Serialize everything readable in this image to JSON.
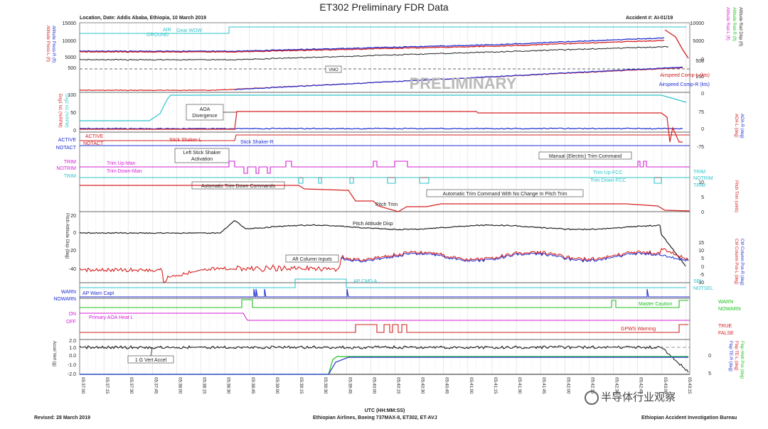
{
  "title": "ET302 Preliminary FDR Data",
  "header": {
    "location": "Location, Date: Addis Ababa, Ethiopia, 10 March 2019",
    "accident": "Accident #: AI-01/19"
  },
  "footer": {
    "revised": "Revised: 28 March 2019",
    "aircraft": "Ethiopian Airlines, Boeing 737MAX-8, ET302, ET-AVJ",
    "bureau": "Ethiopian Accident Investigation Bureau"
  },
  "watermark": "半导体行业观察",
  "preliminary": "PRELIMINARY",
  "colors": {
    "red": "#d62020",
    "blue": "#1f2fd0",
    "teal": "#2ec4cc",
    "magenta": "#d61fd6",
    "green": "#22c022",
    "black": "#222222",
    "gray": "#888888"
  },
  "chart_data": {
    "type": "line",
    "xlabel": "UTC (HH:MM:SS)",
    "x_ticks": [
      "05:37:00",
      "05:37:15",
      "05:37:30",
      "05:37:45",
      "05:38:00",
      "05:38:15",
      "05:38:30",
      "05:38:45",
      "05:39:00",
      "05:39:15",
      "05:39:30",
      "05:39:45",
      "05:40:00",
      "05:40:15",
      "05:40:30",
      "05:40:45",
      "05:41:00",
      "05:41:15",
      "05:41:30",
      "05:41:45",
      "05:42:00",
      "05:42:15",
      "05:42:30",
      "05:42:45",
      "05:43:00",
      "05:43:15"
    ],
    "panels": [
      {
        "name": "altitude",
        "left_labels": [
          "Altitude Press-R (ft)",
          "Altitude Press-L (ft)"
        ],
        "right_labels": [
          "Altitude Rad Disp (ft)",
          "Altitude Rad-L (ft)",
          "Altitude Rad-R (ft)"
        ],
        "left_ticks": [
          "15000",
          "10000",
          "5000"
        ],
        "right_ticks": [
          "10000",
          "5000",
          "0"
        ],
        "annotations": [
          "AIR",
          "GROUND",
          "Gear WOW"
        ]
      },
      {
        "name": "airspeed",
        "left_ticks": [
          "500"
        ],
        "right_ticks": [
          "500",
          "250",
          "0"
        ],
        "annotations": [
          "VMO",
          "Airspeed Comp-L (kts)",
          "Airspeed Comp-R (kts)"
        ]
      },
      {
        "name": "aoa",
        "left_labels": [
          "Eng2 N1 (%RPM)",
          "Eng1 N1 (%RPM)"
        ],
        "right_labels": [
          "AOA-R (deg)",
          "AOA-L (deg)"
        ],
        "left_ticks": [
          "100",
          "50",
          "0"
        ],
        "right_ticks": [
          "75",
          "0",
          "-75"
        ],
        "annotations": [
          "AOA Divergence",
          "Stick Shaker-L",
          "Stick Shaker-R",
          "Left Stick Shaker Activation",
          "ACTIVE",
          "NOTACT",
          "ACTIVE",
          "NOTACT"
        ]
      },
      {
        "name": "trim_cmd",
        "annotations": [
          "Manual (Electric) Trim Command",
          "Trim Up-Man",
          "Trim Down-Man",
          "Trim Up-FCC",
          "Trim Down-FCC",
          "Automatic Trim Down Commands",
          "Automatic Trim Command With No Change In Pitch Trim",
          "TRIM",
          "NOTRIM",
          "TRIM"
        ]
      },
      {
        "name": "pitch_trim",
        "right_labels": [
          "Pitch Trim (units)"
        ],
        "right_ticks": [
          "10",
          "5",
          "0"
        ],
        "annotations": [
          "Pitch Trim"
        ]
      },
      {
        "name": "pitch_attitude",
        "left_labels": [
          "Pitch Attitude Disp (deg)"
        ],
        "left_ticks": [
          "20",
          "0",
          "-20",
          "-40"
        ],
        "right_labels": [
          "Ctrl Column Pos-R (deg)",
          "Ctrl Column Pos-L (deg)"
        ],
        "right_ticks": [
          "15",
          "10",
          "5",
          "0",
          "-5",
          "-10"
        ],
        "annotations": [
          "Pitch Attitude Disp",
          "Aft Column Inputs"
        ]
      },
      {
        "name": "autopilot",
        "annotations": [
          "AP CMD A",
          "SEL",
          "NOTSEL",
          "AP Warn Capt",
          "WARN",
          "NOWARN"
        ]
      },
      {
        "name": "discretes",
        "annotations": [
          "Master Caution",
          "WARN",
          "NOWARN",
          "Primary AOA Heat L",
          "ON",
          "OFF",
          "GPWS Warning",
          "TRUE",
          "FALSE"
        ]
      },
      {
        "name": "accel",
        "left_labels": [
          "Accel Vert (g)"
        ],
        "left_ticks": [
          "2.0",
          "1.0",
          "0.0",
          "-1.0",
          "-2.0"
        ],
        "right_labels": [
          "Flap Hndl Pos (deg)",
          "Flap TE-L (deg)",
          "Flap TE-R (deg)"
        ],
        "right_ticks": [
          "0",
          "5"
        ],
        "annotations": [
          "1 G Vert Accel"
        ]
      }
    ]
  }
}
